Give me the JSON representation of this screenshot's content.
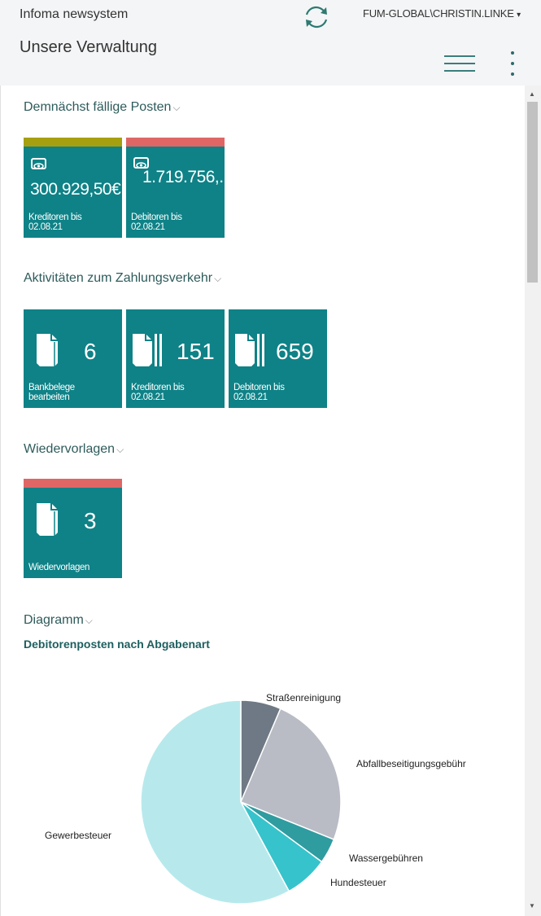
{
  "header": {
    "app_title": "Infoma newsystem",
    "user": "FUM-GLOBAL\\CHRISTIN.LINKE",
    "user_caret": "▾",
    "page_title": "Unsere Verwaltung",
    "icons": [
      "refresh-icon",
      "hamburger-menu-icon",
      "more-options-icon"
    ]
  },
  "sections": {
    "due": {
      "title": "Demnächst fällige Posten",
      "chev": "⌵",
      "tiles": [
        {
          "value": "300.929,50€",
          "label1": "Kreditoren bis",
          "label2": "02.08.21",
          "bar_color": "#a69f10",
          "icon": "eye-icon"
        },
        {
          "value": "1.719.756,...",
          "label1": "Debitoren bis",
          "label2": "02.08.21",
          "bar_color": "#e06666",
          "icon": "eye-icon"
        }
      ]
    },
    "payments": {
      "title": "Aktivitäten zum Zahlungsverkehr",
      "chev": "⌵",
      "tiles": [
        {
          "value": "6",
          "label1": "Bankbelege",
          "label2": "bearbeiten",
          "icon": "document-icon"
        },
        {
          "value": "151",
          "label1": "Kreditoren bis",
          "label2": "02.08.21",
          "icon": "documents-stack-icon"
        },
        {
          "value": "659",
          "label1": "Debitoren bis",
          "label2": "02.08.21",
          "icon": "documents-stack-icon"
        }
      ]
    },
    "followups": {
      "title": "Wiedervorlagen",
      "chev": "⌵",
      "tiles": [
        {
          "value": "3",
          "label1": "Wiedervorlagen",
          "bar_color": "#e06666",
          "icon": "document-icon"
        }
      ]
    },
    "chart": {
      "title": "Diagramm",
      "chev": "⌵",
      "subtitle": "Debitorenposten nach Abgabenart"
    }
  },
  "colors": {
    "tile": "#0e8287",
    "accent": "#2e7d7d"
  },
  "chart_data": {
    "type": "pie",
    "title": "Debitorenposten nach Abgabenart",
    "categories": [
      "Straßenreinigung",
      "Abfallbeseitigungsgebühr",
      "Wassergebühren",
      "Hundesteuer",
      "Gewerbesteuer"
    ],
    "values": [
      6.5,
      24.5,
      4,
      7,
      58
    ],
    "colors": [
      "#6f7985",
      "#b9bcc5",
      "#2f9ca0",
      "#37c3cb",
      "#b7e9ec"
    ],
    "unit": "percent (estimated from slice angles)",
    "legend_position": "labels adjacent to slices"
  }
}
